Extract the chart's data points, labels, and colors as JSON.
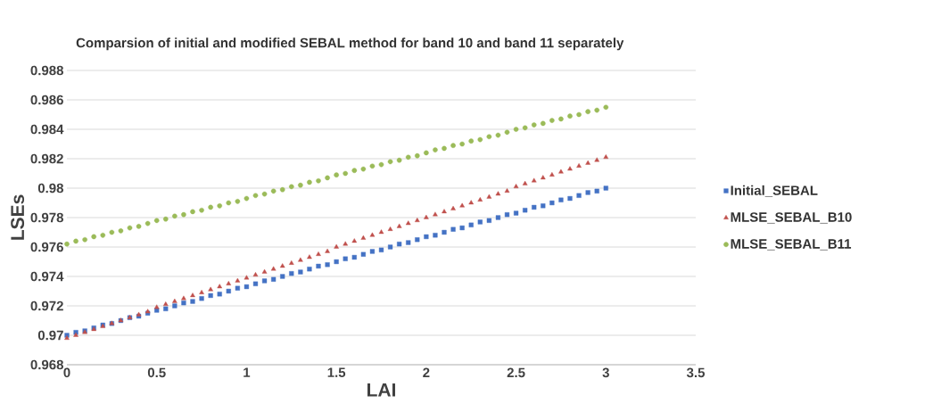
{
  "chart_data": {
    "type": "scatter",
    "title": "Comparsion of initial and modified SEBAL method for band 10 and band 11 separately",
    "xlabel": "LAI",
    "ylabel": "LSEs",
    "x": [
      0,
      0.05,
      0.1,
      0.15,
      0.2,
      0.25,
      0.3,
      0.35,
      0.4,
      0.45,
      0.5,
      0.55,
      0.6,
      0.65,
      0.7,
      0.75,
      0.8,
      0.85,
      0.9,
      0.95,
      1,
      1.05,
      1.1,
      1.15,
      1.2,
      1.25,
      1.3,
      1.35,
      1.4,
      1.45,
      1.5,
      1.55,
      1.6,
      1.65,
      1.7,
      1.75,
      1.8,
      1.85,
      1.9,
      1.95,
      2,
      2.05,
      2.1,
      2.15,
      2.2,
      2.25,
      2.3,
      2.35,
      2.4,
      2.45,
      2.5,
      2.55,
      2.6,
      2.65,
      2.7,
      2.75,
      2.8,
      2.85,
      2.9,
      2.95,
      3
    ],
    "series": [
      {
        "name": "Initial_SEBAL",
        "color": "#4472c4",
        "marker": "square",
        "values": [
          0.97,
          0.9702,
          0.9703,
          0.9705,
          0.9707,
          0.9708,
          0.971,
          0.9712,
          0.9713,
          0.9715,
          0.9717,
          0.9718,
          0.972,
          0.9722,
          0.9723,
          0.9725,
          0.9727,
          0.9728,
          0.973,
          0.9732,
          0.9733,
          0.9735,
          0.9737,
          0.9738,
          0.974,
          0.9742,
          0.9743,
          0.9745,
          0.9747,
          0.9748,
          0.975,
          0.9752,
          0.9753,
          0.9755,
          0.9757,
          0.9758,
          0.976,
          0.9762,
          0.9763,
          0.9765,
          0.9767,
          0.9768,
          0.977,
          0.9772,
          0.9773,
          0.9775,
          0.9777,
          0.9778,
          0.978,
          0.9782,
          0.9783,
          0.9785,
          0.9787,
          0.9788,
          0.979,
          0.9792,
          0.9793,
          0.9795,
          0.9797,
          0.9798,
          0.98
        ]
      },
      {
        "name": "MLSE_SEBAL_B10",
        "color": "#c0504d",
        "marker": "triangle",
        "values": [
          0.9698,
          0.97,
          0.9702,
          0.9704,
          0.9706,
          0.9708,
          0.971,
          0.9712,
          0.9714,
          0.9716,
          0.9719,
          0.9721,
          0.9723,
          0.9725,
          0.9727,
          0.9729,
          0.9731,
          0.9733,
          0.9735,
          0.9737,
          0.9739,
          0.9741,
          0.9743,
          0.9745,
          0.9747,
          0.9749,
          0.9751,
          0.9753,
          0.9755,
          0.9757,
          0.976,
          0.9762,
          0.9764,
          0.9766,
          0.9768,
          0.977,
          0.9772,
          0.9774,
          0.9776,
          0.9778,
          0.978,
          0.9782,
          0.9784,
          0.9786,
          0.9788,
          0.979,
          0.9792,
          0.9794,
          0.9796,
          0.9798,
          0.9801,
          0.9803,
          0.9805,
          0.9807,
          0.9809,
          0.9811,
          0.9813,
          0.9815,
          0.9817,
          0.9819,
          0.9821
        ]
      },
      {
        "name": "MLSE_SEBAL_B11",
        "color": "#9bbb59",
        "marker": "circle",
        "values": [
          0.9762,
          0.9764,
          0.9765,
          0.9767,
          0.9768,
          0.977,
          0.9771,
          0.9773,
          0.9774,
          0.9776,
          0.9778,
          0.9779,
          0.9781,
          0.9782,
          0.9784,
          0.9785,
          0.9787,
          0.9788,
          0.979,
          0.9791,
          0.9793,
          0.9795,
          0.9796,
          0.9798,
          0.9799,
          0.9801,
          0.9802,
          0.9804,
          0.9805,
          0.9807,
          0.9809,
          0.981,
          0.9812,
          0.9813,
          0.9815,
          0.9816,
          0.9818,
          0.9819,
          0.9821,
          0.9822,
          0.9824,
          0.9826,
          0.9827,
          0.9829,
          0.983,
          0.9832,
          0.9833,
          0.9835,
          0.9836,
          0.9838,
          0.984,
          0.9841,
          0.9843,
          0.9844,
          0.9846,
          0.9847,
          0.9849,
          0.985,
          0.9852,
          0.9853,
          0.9855
        ]
      }
    ],
    "xlim": [
      0,
      3.5
    ],
    "xticks": [
      0,
      0.5,
      1,
      1.5,
      2,
      2.5,
      3,
      3.5
    ],
    "ylim": [
      0.968,
      0.988
    ],
    "yticks": [
      0.968,
      0.97,
      0.972,
      0.974,
      0.976,
      0.978,
      0.98,
      0.982,
      0.984,
      0.986,
      0.988
    ],
    "grid": "y",
    "legend": "right"
  }
}
